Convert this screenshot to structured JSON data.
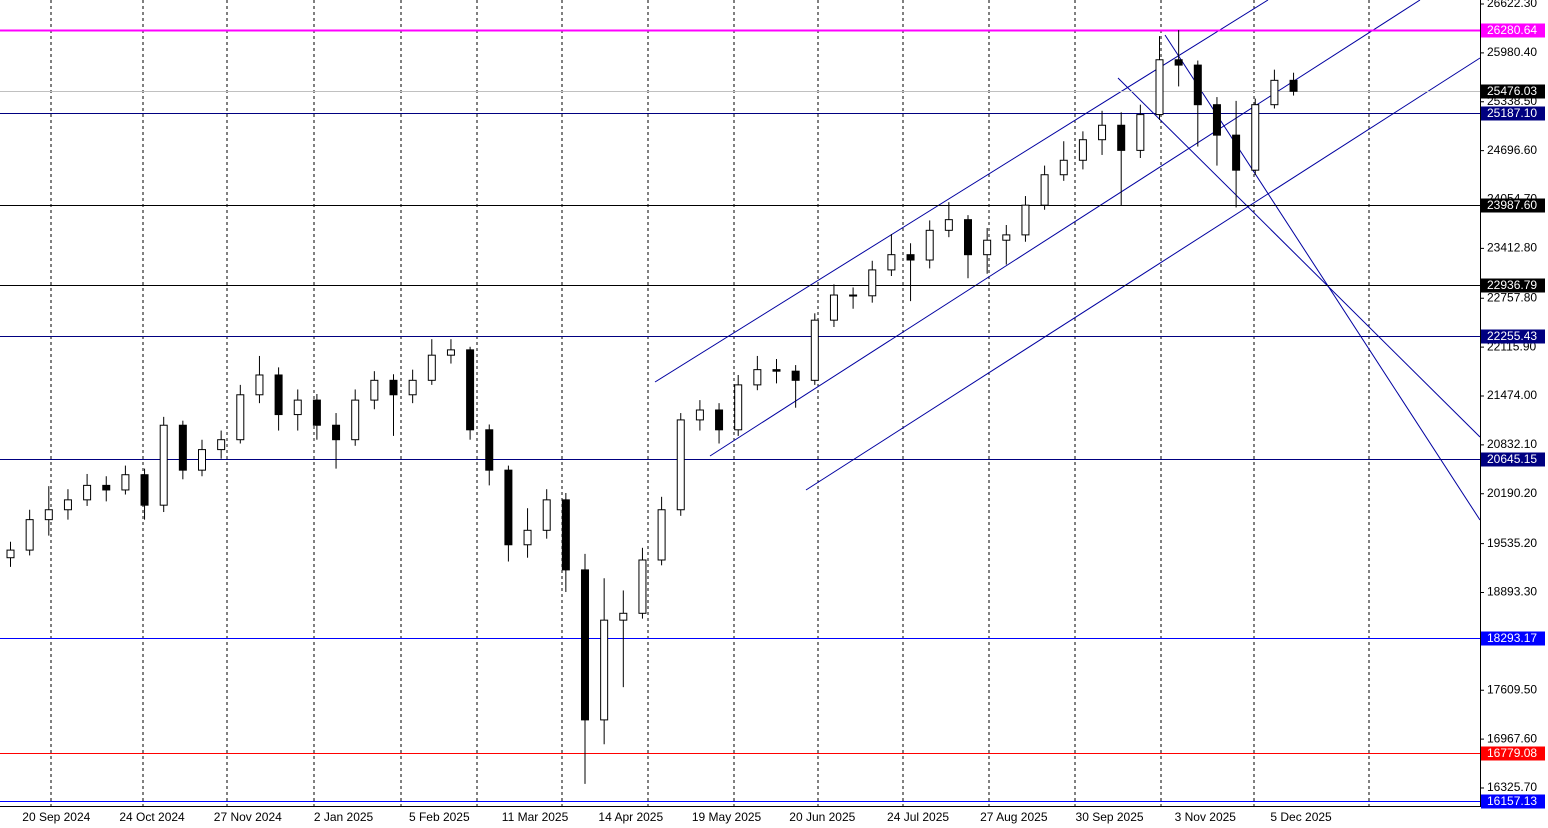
{
  "chart_data": {
    "type": "candlestick",
    "categories": [
      null,
      null,
      "20 Sep 2024",
      null,
      null,
      null,
      null,
      "24 Oct 2024",
      null,
      null,
      null,
      null,
      "27 Nov 2024",
      null,
      null,
      null,
      null,
      "2 Jan 2025",
      null,
      null,
      null,
      null,
      "5 Feb 2025",
      null,
      null,
      null,
      null,
      "11 Mar 2025",
      null,
      null,
      null,
      null,
      "14 Apr 2025",
      null,
      null,
      null,
      null,
      "19 May 2025",
      null,
      null,
      null,
      null,
      "20 Jun 2025",
      null,
      null,
      null,
      null,
      "24 Jul 2025",
      null,
      null,
      null,
      null,
      "27 Aug 2025",
      null,
      null,
      null,
      null,
      "30 Sep 2025",
      null,
      null,
      null,
      null,
      "3 Nov 2025",
      null,
      null,
      null,
      null,
      "5 Dec 2025"
    ],
    "open": [
      19350,
      19450,
      19850,
      19980,
      20110,
      20300,
      20240,
      20440,
      20040,
      21090,
      20500,
      20770,
      20900,
      21490,
      21750,
      21230,
      21420,
      21090,
      20900,
      21420,
      21680,
      21490,
      21680,
      22010,
      22080,
      21030,
      20500,
      19520,
      19710,
      20110,
      19190,
      17220,
      18530,
      18620,
      19320,
      19980,
      21160,
      21290,
      21030,
      21620,
      21820,
      21800,
      21680,
      22470,
      22800,
      22790,
      23130,
      23330,
      23260,
      23650,
      23790,
      23330,
      23520,
      23590,
      23980,
      24380,
      24570,
      24840,
      25030,
      24700,
      25170,
      25890,
      25820,
      25300,
      24900,
      24440,
      25300,
      25620
    ],
    "high": [
      19560,
      19980,
      20290,
      20250,
      20450,
      20420,
      20560,
      20520,
      21200,
      21150,
      20900,
      21020,
      21620,
      22000,
      21850,
      21560,
      21500,
      21250,
      21560,
      21800,
      21760,
      21820,
      22220,
      22220,
      22120,
      21100,
      20560,
      20000,
      20250,
      20200,
      19400,
      19080,
      18920,
      19480,
      20150,
      21250,
      21420,
      21380,
      21750,
      22000,
      21960,
      21880,
      22560,
      22940,
      22900,
      23250,
      23600,
      23480,
      23780,
      24020,
      23850,
      23680,
      23720,
      24100,
      24500,
      24820,
      24950,
      25220,
      25200,
      25300,
      26200,
      26280,
      25880,
      25400,
      25350,
      25380,
      25760,
      25720
    ],
    "low": [
      19230,
      19380,
      19640,
      19850,
      20030,
      20090,
      20180,
      19850,
      19950,
      20380,
      20420,
      20650,
      20850,
      21380,
      21020,
      21020,
      20900,
      20520,
      20820,
      21300,
      20950,
      21380,
      21620,
      21900,
      20900,
      20300,
      19300,
      19350,
      19600,
      18900,
      16380,
      16900,
      17650,
      18550,
      19250,
      19900,
      21020,
      20850,
      20950,
      21550,
      21640,
      21320,
      21620,
      22380,
      22620,
      22700,
      23050,
      22720,
      23150,
      23560,
      23020,
      23080,
      23200,
      23500,
      23920,
      24300,
      24450,
      24640,
      23980,
      24600,
      25100,
      25540,
      24750,
      24500,
      23950,
      24380,
      25250,
      25420
    ],
    "close": [
      19450,
      19850,
      19980,
      20110,
      20300,
      20240,
      20440,
      20040,
      21090,
      20500,
      20770,
      20900,
      21490,
      21750,
      21230,
      21420,
      21090,
      20900,
      21420,
      21680,
      21490,
      21680,
      22010,
      22080,
      21030,
      20500,
      19520,
      19710,
      20110,
      19190,
      17220,
      18530,
      18620,
      19320,
      19980,
      21160,
      21290,
      21030,
      21620,
      21820,
      21800,
      21680,
      22470,
      22800,
      22790,
      23130,
      23330,
      23260,
      23650,
      23790,
      23330,
      23520,
      23590,
      23980,
      24380,
      24570,
      24840,
      25030,
      24700,
      25170,
      25890,
      25820,
      25300,
      24900,
      24440,
      25300,
      25620,
      25476
    ],
    "up_color": "#ffffff",
    "down_color": "#000000",
    "ylim": [
      16089,
      26675
    ],
    "yticks": [
      {
        "value": 26622.3,
        "label": "26622.30"
      },
      {
        "value": 25980.4,
        "label": "25980.40"
      },
      {
        "value": 25338.5,
        "label": "25338.50"
      },
      {
        "value": 24696.6,
        "label": "24696.60"
      },
      {
        "value": 24054.7,
        "label": "24054.70"
      },
      {
        "value": 23412.8,
        "label": "23412.80"
      },
      {
        "value": 22757.8,
        "label": "22757.80"
      },
      {
        "value": 22115.9,
        "label": "22115.90"
      },
      {
        "value": 21474,
        "label": "21474.00"
      },
      {
        "value": 20832.1,
        "label": "20832.10"
      },
      {
        "value": 20190.2,
        "label": "20190.20"
      },
      {
        "value": 19535.2,
        "label": "19535.20"
      },
      {
        "value": 18893.3,
        "label": "18893.30"
      },
      {
        "value": 17609.5,
        "label": "17609.50"
      },
      {
        "value": 16967.6,
        "label": "16967.60"
      },
      {
        "value": 16325.7,
        "label": "16325.70"
      }
    ],
    "levels": [
      {
        "value": 26280.64,
        "label": "26280.64",
        "color": "#ff00ff",
        "label_color": "#ff00ff"
      },
      {
        "value": 25476.03,
        "label": "25476.03",
        "color": "#c0c0c0",
        "label_color": "#000000"
      },
      {
        "value": 25187.1,
        "label": "25187.10",
        "color": "#000080",
        "label_color": "#000080"
      },
      {
        "value": 23987.6,
        "label": "23987.60",
        "color": "#000000",
        "label_color": "#000000"
      },
      {
        "value": 22936.79,
        "label": "22936.79",
        "color": "#000000",
        "label_color": "#000000"
      },
      {
        "value": 22255.43,
        "label": "22255.43",
        "color": "#000080",
        "label_color": "#000080"
      },
      {
        "value": 20645.15,
        "label": "20645.15",
        "color": "#000080",
        "label_color": "#000080"
      },
      {
        "value": 18293.17,
        "label": "18293.17",
        "color": "#0000ff",
        "label_color": "#0000ff"
      },
      {
        "value": 16779.08,
        "label": "16779.08",
        "color": "#ff0000",
        "label_color": "#ff0000"
      },
      {
        "value": 16157.13,
        "label": "16157.13",
        "color": "#0000ff",
        "label_color": "#0000ff"
      }
    ]
  }
}
